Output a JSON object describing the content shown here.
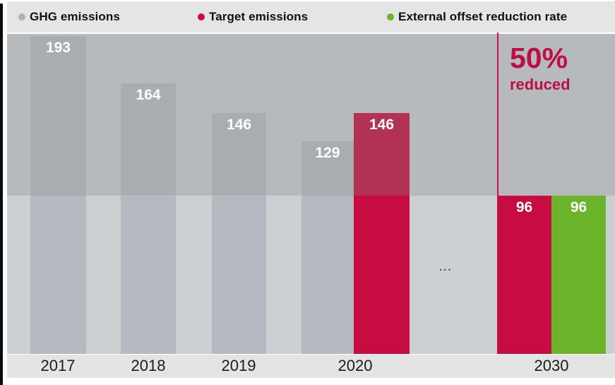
{
  "legend": {
    "items": [
      {
        "id": "ghg",
        "label": "GHG emissions",
        "color": "#aeb2b5"
      },
      {
        "id": "target",
        "label": "Target emissions",
        "color": "#c60c40"
      },
      {
        "id": "offset",
        "label": "External offset reduction rate",
        "color": "#6cb52a"
      }
    ]
  },
  "annotation": {
    "line1": "50%",
    "line2": "reduced"
  },
  "ellipsis": "...",
  "chart_data": {
    "type": "bar",
    "title": "",
    "xlabel": "",
    "ylabel": "",
    "ylim": [
      0,
      194
    ],
    "grid": false,
    "legend_position": "top",
    "categories": [
      "2017",
      "2018",
      "2019",
      "2020",
      "2030"
    ],
    "series": [
      {
        "name": "GHG emissions",
        "points": [
          {
            "x": "2017",
            "y": 193
          },
          {
            "x": "2018",
            "y": 164
          },
          {
            "x": "2019",
            "y": 146
          },
          {
            "x": "2020",
            "y": 129
          }
        ]
      },
      {
        "name": "Target emissions",
        "points": [
          {
            "x": "2020",
            "y": 146
          },
          {
            "x": "2030",
            "y": 96
          }
        ]
      },
      {
        "name": "External offset reduction rate",
        "points": [
          {
            "x": "2030",
            "y": 96
          }
        ]
      }
    ],
    "band_split_value": 96,
    "annotations": [
      {
        "text": "50% reduced",
        "color": "#bd0f45",
        "position": "top-right"
      },
      {
        "text": "...",
        "position": "between 2020 and 2030"
      }
    ],
    "bars": [
      {
        "category": "2017",
        "series": "ghg",
        "value": 193
      },
      {
        "category": "2018",
        "series": "ghg",
        "value": 164
      },
      {
        "category": "2019",
        "series": "ghg",
        "value": 146
      },
      {
        "category": "2020",
        "series": "ghg",
        "value": 129
      },
      {
        "category": "2020",
        "series": "target",
        "value": 146
      },
      {
        "category": "2030",
        "series": "target",
        "value": 96
      },
      {
        "category": "2030",
        "series": "offset",
        "value": 96
      }
    ],
    "colors": {
      "ghg": {
        "top": "#a8adb0",
        "bottom": "#b4bac0"
      },
      "target": {
        "top": "#b23253",
        "bottom": "#c60c40"
      },
      "offset": {
        "top": "#6cb52a",
        "bottom": "#6cb52a"
      }
    },
    "background": {
      "upper_band": "#b7babd",
      "lower_band": "#ccd0d3",
      "ref_line": "#c41848"
    }
  }
}
